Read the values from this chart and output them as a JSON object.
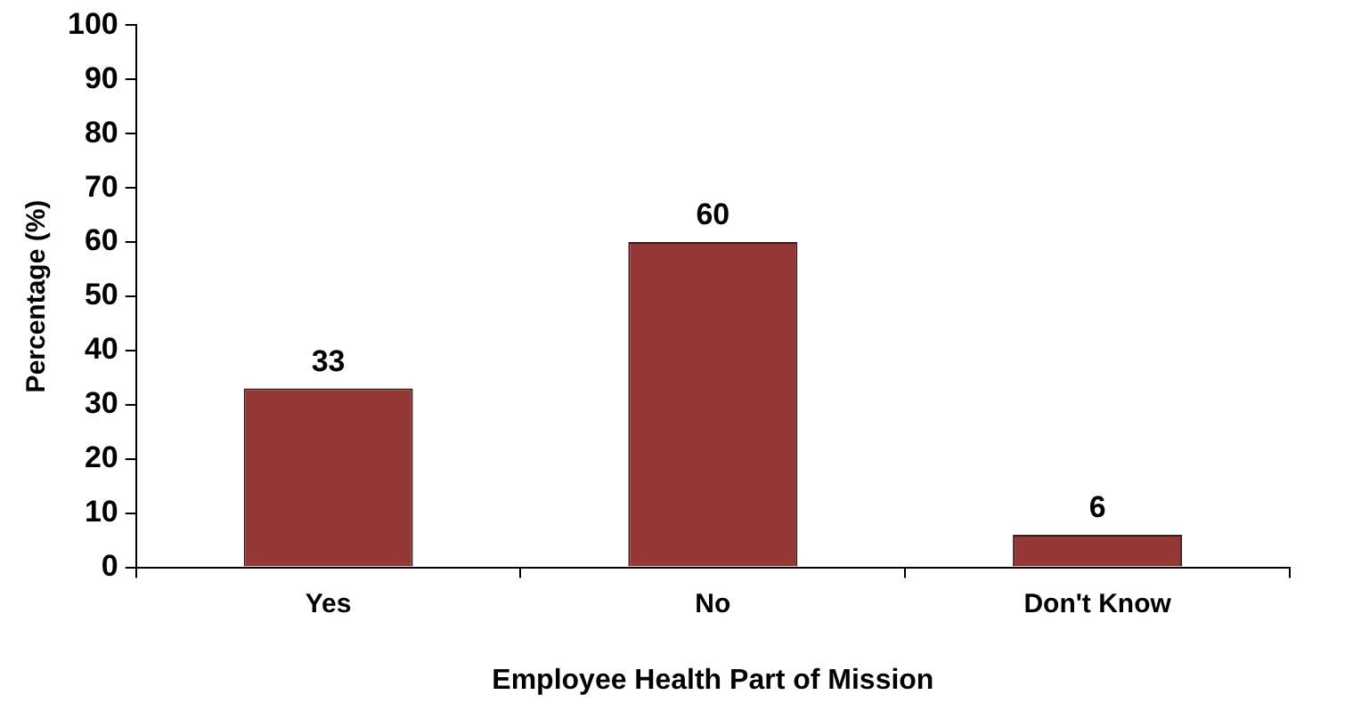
{
  "chart_data": {
    "type": "bar",
    "xlabel": "Employee Health Part of Mission",
    "ylabel": "Percentage (%)",
    "categories": [
      "Yes",
      "No",
      "Don't Know"
    ],
    "values": [
      33,
      60,
      6
    ],
    "color": "#953735",
    "ylim": [
      0,
      100
    ],
    "yticks": [
      0,
      10,
      20,
      30,
      40,
      50,
      60,
      70,
      80,
      90,
      100
    ],
    "grid": false,
    "data_labels": true
  }
}
